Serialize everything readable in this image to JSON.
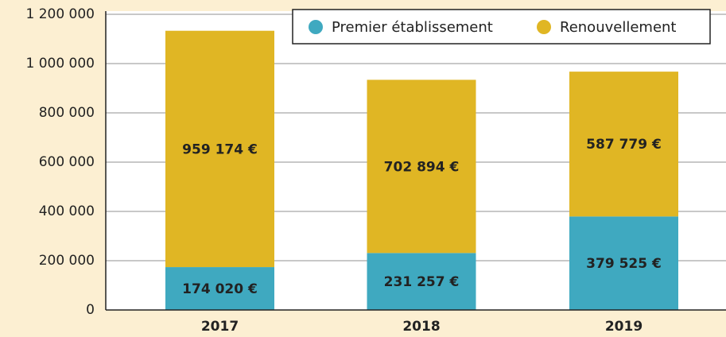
{
  "chart_data": {
    "type": "stacked_bar",
    "categories": [
      "2017",
      "2018",
      "2019"
    ],
    "series": [
      {
        "name": "Premier établissement",
        "color": "#3fa9c0",
        "values": [
          174020,
          231257,
          379525
        ],
        "value_labels": [
          "174 020 €",
          "231 257 €",
          "379 525 €"
        ]
      },
      {
        "name": "Renouvellement",
        "color": "#e0b624",
        "values": [
          959174,
          702894,
          587779
        ],
        "value_labels": [
          "959 174 €",
          "702 894 €",
          "587 779 €"
        ]
      }
    ],
    "ylim": [
      0,
      1200000
    ],
    "yticks": [
      0,
      {
        "value": 200000,
        "label": "200 000"
      },
      {
        "value": 400000,
        "label": "400 000"
      },
      {
        "value": 600000,
        "label": "600 000"
      },
      {
        "value": 800000,
        "label": "800 000"
      },
      {
        "value": 1000000,
        "label": "1 000 000"
      },
      {
        "value": 1200000,
        "label": "1 200 000"
      }
    ],
    "grid": true,
    "legend": "top-right"
  }
}
